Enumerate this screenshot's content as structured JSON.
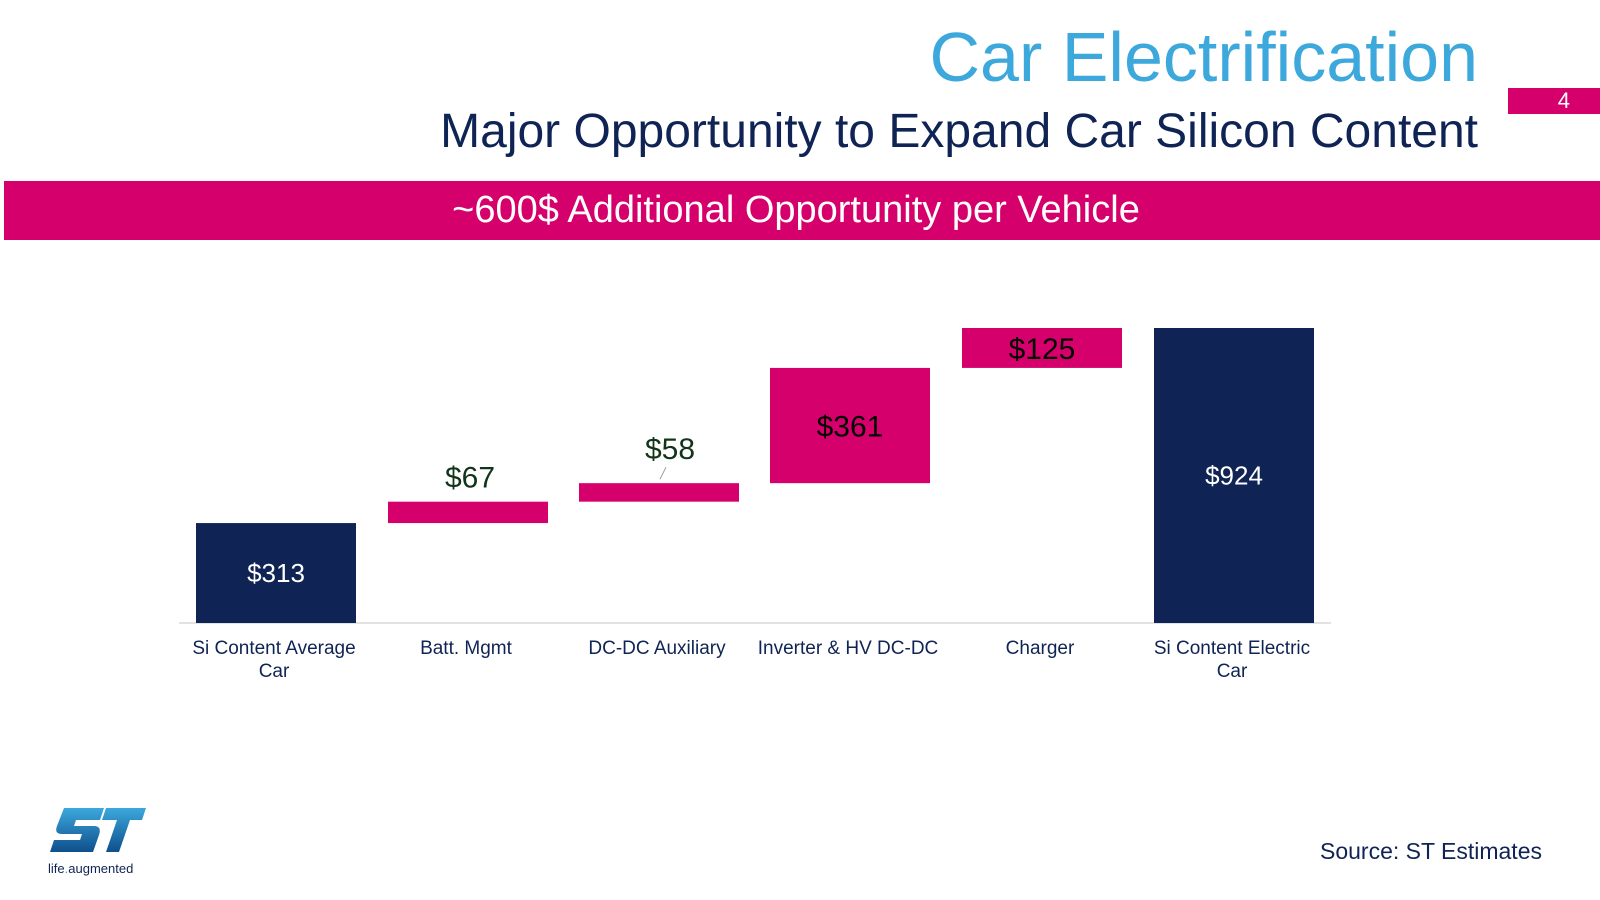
{
  "slide": {
    "title": "Car Electrification",
    "subtitle": "Major Opportunity to Expand Car Silicon Content",
    "page_number": "4",
    "banner": "~600$ Additional Opportunity per Vehicle",
    "source": "Source: ST Estimates",
    "tagline": "life.augmented",
    "colors": {
      "title": "#3ca8dc",
      "navy": "#0f2354",
      "magenta": "#d5006c"
    }
  },
  "chart_data": {
    "type": "bar",
    "subtype": "waterfall",
    "categories": [
      [
        "Si Content Average",
        "Car"
      ],
      [
        "Batt. Mgmt"
      ],
      [
        "DC-DC Auxiliary"
      ],
      [
        "Inverter & HV DC-DC"
      ],
      [
        "Charger"
      ],
      [
        "Si Content Electric",
        "Car"
      ]
    ],
    "steps": [
      {
        "kind": "total",
        "value": 313,
        "label": "$313"
      },
      {
        "kind": "increment",
        "value": 67,
        "label": "$67"
      },
      {
        "kind": "increment",
        "value": 58,
        "label": "$58"
      },
      {
        "kind": "increment",
        "value": 361,
        "label": "$361"
      },
      {
        "kind": "increment",
        "value": 125,
        "label": "$125"
      },
      {
        "kind": "total",
        "value": 924,
        "label": "$924"
      }
    ],
    "ylim": [
      0,
      924
    ],
    "grid": false,
    "legend": "none",
    "colors": {
      "total": "#0f2354",
      "increment": "#d5006c"
    }
  }
}
